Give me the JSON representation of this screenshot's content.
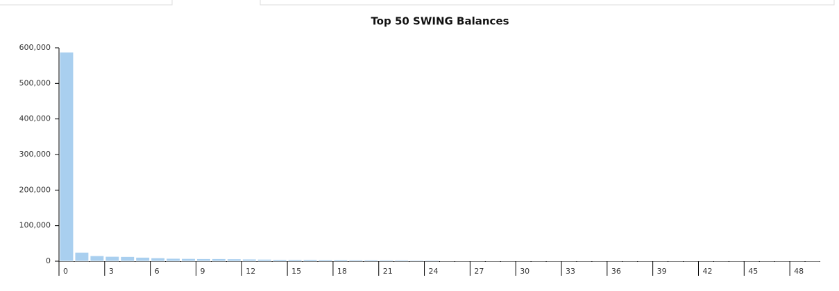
{
  "chart_data": {
    "type": "bar",
    "title": "Top 50 SWING Balances",
    "categories": [
      "0",
      null,
      null,
      "3",
      null,
      null,
      "6",
      null,
      null,
      "9",
      null,
      null,
      "12",
      null,
      null,
      "15",
      null,
      null,
      "18",
      null,
      null,
      "21",
      null,
      null,
      "24",
      null,
      null,
      "27",
      null,
      null,
      "30",
      null,
      null,
      "33",
      null,
      null,
      "36",
      null,
      null,
      "39",
      null,
      null,
      "42",
      null,
      null,
      "45",
      null,
      null,
      "48",
      null
    ],
    "values": [
      588000,
      25000,
      15500,
      13500,
      13000,
      11000,
      9500,
      8000,
      7500,
      7000,
      7000,
      6500,
      6000,
      5500,
      5000,
      5000,
      5000,
      4500,
      4500,
      4000,
      4000,
      3500,
      3500,
      3000,
      3000,
      1800,
      1700,
      1600,
      1500,
      1500,
      1400,
      1400,
      1300,
      1300,
      1300,
      1200,
      1200,
      1200,
      1100,
      1100,
      1100,
      1100,
      1000,
      1000,
      1000,
      1000,
      1000,
      900,
      900,
      900
    ],
    "color": "#a9cfef",
    "ylim": [
      0,
      600000
    ],
    "yticks": [
      0,
      {
        "value": 100000,
        "label": "100,000"
      },
      {
        "value": 200000,
        "label": "200,000"
      },
      {
        "value": 300000,
        "label": "300,000"
      },
      {
        "value": 400000,
        "label": "400,000"
      },
      {
        "value": 500000,
        "label": "500,000"
      },
      {
        "value": 600000,
        "label": "600,000"
      }
    ]
  }
}
